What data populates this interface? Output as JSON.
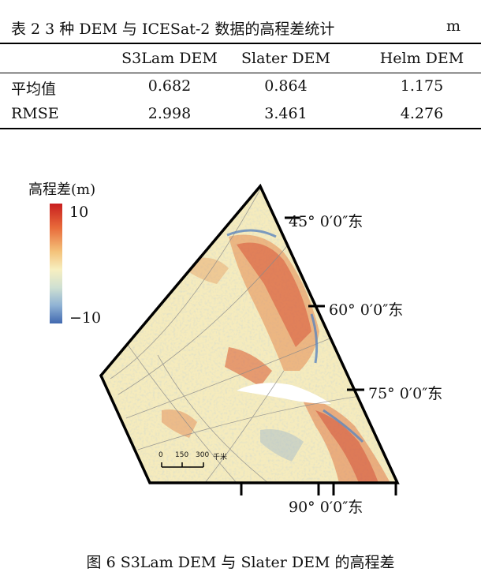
{
  "table": {
    "caption": "表 2 3 种 DEM 与 ICESat-2 数据的高程差统计",
    "unit": "m",
    "headers": [
      "",
      "S3Lam DEM",
      "Slater DEM",
      "Helm DEM"
    ],
    "rows": [
      {
        "label": "平均值",
        "values": [
          "0.682",
          "0.864",
          "1.175"
        ]
      },
      {
        "label": "RMSE",
        "values": [
          "2.998",
          "3.461",
          "4.276"
        ]
      }
    ]
  },
  "figure": {
    "legend": {
      "title": "高程差(m)",
      "max": "10",
      "min": "−10"
    },
    "coordinates": [
      "45°  0′0″东",
      "60°  0′0″东",
      "75°  0′0″东",
      "90°  0′0″东"
    ],
    "scale_bar": {
      "ticks": [
        "0",
        "150",
        "300"
      ],
      "unit": "千米"
    },
    "caption": "图 6 S3Lam DEM 与 Slater DEM 的高程差"
  },
  "colors": {
    "high": "#c81f1f",
    "mid": "#f7efc0",
    "low": "#4169b0"
  }
}
